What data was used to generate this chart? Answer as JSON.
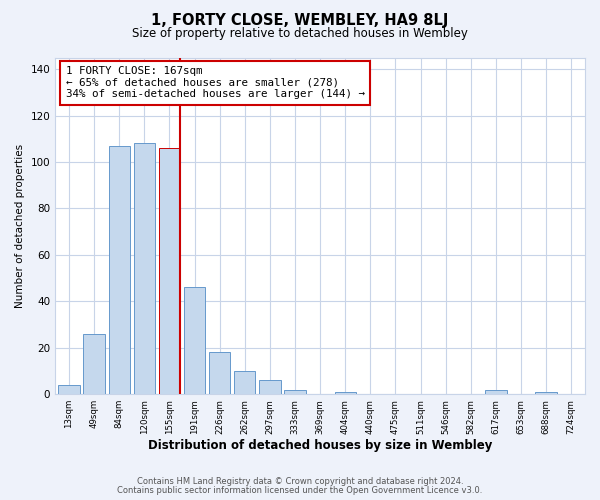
{
  "title": "1, FORTY CLOSE, WEMBLEY, HA9 8LJ",
  "subtitle": "Size of property relative to detached houses in Wembley",
  "xlabel": "Distribution of detached houses by size in Wembley",
  "ylabel": "Number of detached properties",
  "footnote1": "Contains HM Land Registry data © Crown copyright and database right 2024.",
  "footnote2": "Contains public sector information licensed under the Open Government Licence v3.0.",
  "bar_labels": [
    "13sqm",
    "49sqm",
    "84sqm",
    "120sqm",
    "155sqm",
    "191sqm",
    "226sqm",
    "262sqm",
    "297sqm",
    "333sqm",
    "369sqm",
    "404sqm",
    "440sqm",
    "475sqm",
    "511sqm",
    "546sqm",
    "582sqm",
    "617sqm",
    "653sqm",
    "688sqm",
    "724sqm"
  ],
  "bar_values": [
    4,
    26,
    107,
    108,
    106,
    46,
    18,
    10,
    6,
    2,
    0,
    1,
    0,
    0,
    0,
    0,
    0,
    2,
    0,
    1,
    0
  ],
  "bar_color": "#c5d8ed",
  "bar_edge_color": "#6699cc",
  "highlight_bar_index": 4,
  "highlight_edge_color": "#cc0000",
  "vline_color": "#cc0000",
  "annotation_line1": "1 FORTY CLOSE: 167sqm",
  "annotation_line2": "← 65% of detached houses are smaller (278)",
  "annotation_line3": "34% of semi-detached houses are larger (144) →",
  "annotation_box_color": "#ffffff",
  "annotation_box_edge": "#cc0000",
  "ylim": [
    0,
    145
  ],
  "yticks": [
    0,
    20,
    40,
    60,
    80,
    100,
    120,
    140
  ],
  "bg_color": "#eef2fa",
  "plot_bg_color": "#ffffff",
  "grid_color": "#c8d4e8"
}
